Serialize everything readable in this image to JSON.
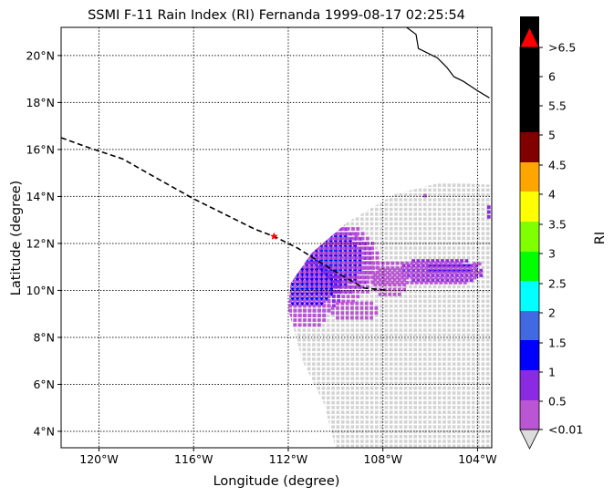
{
  "title": "SSMI F-11 Rain Index (RI) Fernanda 1999-08-17 02:25:54",
  "x_label": "Longitude (degree)",
  "y_label": "Latitude (degree)",
  "colorbar_label": "RI",
  "x_ticks": [
    "120°W",
    "116°W",
    "112°W",
    "108°W",
    "104°W"
  ],
  "y_ticks": [
    "20°N",
    "18°N",
    "16°N",
    "14°N",
    "12°N",
    "10°N",
    "8°N",
    "6°N",
    "4°N"
  ],
  "colorbar_ticks": [
    ">6.5",
    "6",
    "5.5",
    "5",
    "4.5",
    "4",
    "3.5",
    "3",
    "2.5",
    "2",
    "1.5",
    "1",
    "0.5",
    "<0.01"
  ],
  "colors": {
    "swath_background": "#d3d3d3",
    "track": "#000000",
    "storm_center_marker": "#ff0000",
    "coastline": "#000000",
    "gridlines": "#000000"
  },
  "colorbar_bins": [
    {
      "range": "<0.01-0.5",
      "color": "#ba55d3"
    },
    {
      "range": "0.5-1",
      "color": "#8a2be2"
    },
    {
      "range": "1-1.5",
      "color": "#0000ff"
    },
    {
      "range": "1.5-2",
      "color": "#4169e1"
    },
    {
      "range": "2-2.5",
      "color": "#00ffff"
    },
    {
      "range": "2.5-3",
      "color": "#00ff00"
    },
    {
      "range": "3-3.5",
      "color": "#7fff00"
    },
    {
      "range": "3.5-4",
      "color": "#ffff00"
    },
    {
      "range": "4-4.5",
      "color": "#ffa500"
    },
    {
      "range": "4.5-5",
      "color": "#800000"
    },
    {
      "range": "5-6.5",
      "color": "#000000"
    },
    {
      "range": ">6.5",
      "color": "#ff0000"
    },
    {
      "range": "<0.01",
      "color": "#dcdcdc"
    }
  ],
  "map_data": {
    "lon_range": [
      -121.6,
      -103.4
    ],
    "lat_range": [
      3.3,
      21.2
    ],
    "track": [
      [
        -121.6,
        16.5
      ],
      [
        -120.5,
        16.1
      ],
      [
        -119.0,
        15.6
      ],
      [
        -117.6,
        14.8
      ],
      [
        -116.0,
        13.9
      ],
      [
        -114.6,
        13.2
      ],
      [
        -113.4,
        12.6
      ],
      [
        -112.6,
        12.3
      ],
      [
        -111.6,
        11.8
      ],
      [
        -110.5,
        11.1
      ],
      [
        -109.5,
        10.5
      ],
      [
        -108.8,
        10.1
      ],
      [
        -107.8,
        10.0
      ]
    ],
    "storm_center": [
      -112.6,
      12.3
    ],
    "coastline": [
      [
        -107.0,
        21.2
      ],
      [
        -106.6,
        20.9
      ],
      [
        -106.5,
        20.3
      ],
      [
        -105.7,
        19.9
      ],
      [
        -105.3,
        19.5
      ],
      [
        -105.0,
        19.1
      ],
      [
        -104.6,
        18.9
      ],
      [
        -104.0,
        18.5
      ],
      [
        -103.5,
        18.2
      ]
    ],
    "rain_cells": [
      {
        "lon": -110.3,
        "lat": 11.3,
        "level": 4,
        "rlon": 0.5,
        "rlat": 0.6
      },
      {
        "lon": -110.2,
        "lat": 11.3,
        "level": 3,
        "rlon": 0.9,
        "rlat": 0.9
      },
      {
        "lon": -110.2,
        "lat": 11.3,
        "level": 2,
        "rlon": 1.3,
        "rlat": 1.2
      },
      {
        "lon": -110.2,
        "lat": 11.3,
        "level": 1,
        "rlon": 1.7,
        "rlat": 1.5
      },
      {
        "lon": -110.3,
        "lat": 11.2,
        "level": 0,
        "rlon": 2.1,
        "rlat": 1.8
      },
      {
        "lon": -111.5,
        "lat": 10.2,
        "level": 4,
        "rlon": 0.3,
        "rlat": 0.3
      },
      {
        "lon": -111.3,
        "lat": 10.2,
        "level": 3,
        "rlon": 0.7,
        "rlat": 0.6
      },
      {
        "lon": -111.2,
        "lat": 10.2,
        "level": 2,
        "rlon": 1.1,
        "rlat": 0.9
      },
      {
        "lon": -111.2,
        "lat": 10.1,
        "level": 1,
        "rlon": 1.4,
        "rlat": 1.3
      },
      {
        "lon": -111.3,
        "lat": 9.8,
        "level": 0,
        "rlon": 1.1,
        "rlat": 1.4
      },
      {
        "lon": -105.3,
        "lat": 11.0,
        "level": 2,
        "rlon": 1.0,
        "rlat": 0.3
      },
      {
        "lon": -105.6,
        "lat": 10.9,
        "level": 1,
        "rlon": 1.8,
        "rlat": 0.6
      },
      {
        "lon": -106.6,
        "lat": 10.8,
        "level": 0,
        "rlon": 2.7,
        "rlat": 0.6
      },
      {
        "lon": -107.8,
        "lat": 10.4,
        "level": 0,
        "rlon": 0.8,
        "rlat": 0.7
      },
      {
        "lon": -103.5,
        "lat": 13.4,
        "level": 1,
        "rlon": 0.3,
        "rlat": 0.4
      },
      {
        "lon": -109.3,
        "lat": 9.2,
        "level": 0,
        "rlon": 1.1,
        "rlat": 0.5
      },
      {
        "lon": -104.1,
        "lat": 11.2,
        "level": 0,
        "rlon": 0.3,
        "rlat": 0.2
      },
      {
        "lon": -106.3,
        "lat": 14.1,
        "level": 0,
        "rlon": 0.2,
        "rlat": 0.2
      },
      {
        "lon": -108.6,
        "lat": 13.8,
        "level": 0,
        "rlon": 0.2,
        "rlat": 0.1
      },
      {
        "lon": -109.2,
        "lat": 12.4,
        "level": 0,
        "rlon": 0.2,
        "rlat": 0.2
      },
      {
        "lon": -110.2,
        "lat": 8.4,
        "level": 0,
        "rlon": 0.1,
        "rlat": 0.1
      },
      {
        "lon": -105.9,
        "lat": 6.6,
        "level": 0,
        "rlon": 0.1,
        "rlat": 0.1
      },
      {
        "lon": -106.8,
        "lat": 5.3,
        "level": 0,
        "rlon": 0.1,
        "rlat": 0.1
      }
    ]
  }
}
